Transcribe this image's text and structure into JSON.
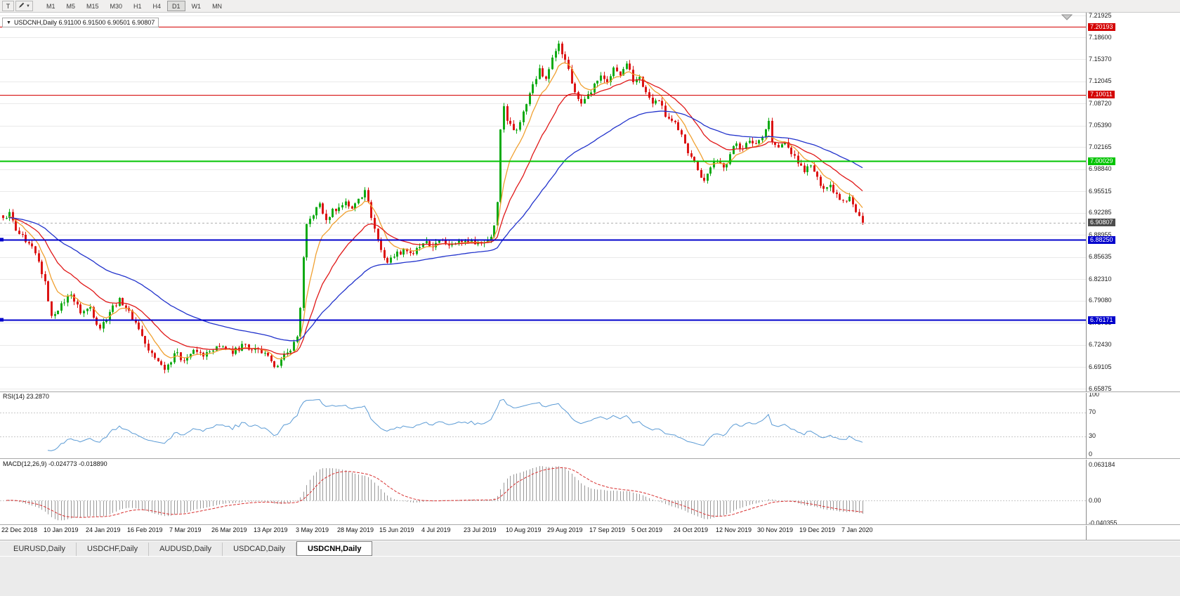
{
  "toolbar": {
    "text_tool": "T",
    "draw_tool_icon": "pencil-icon",
    "timeframes": [
      "M1",
      "M5",
      "M15",
      "M30",
      "H1",
      "H4",
      "D1",
      "W1",
      "MN"
    ],
    "active_timeframe": "D1"
  },
  "chart_header": {
    "collapse_icon": "▼",
    "text": "USDCNH,Daily 6.91100 6.91500 6.90501 6.90807"
  },
  "panels": {
    "rsi_label": "RSI(14) 23.2870",
    "macd_label": "MACD(12,26,9) -0.024773 -0.018890"
  },
  "tabs": {
    "items": [
      "EURUSD,Daily",
      "USDCHF,Daily",
      "AUDUSD,Daily",
      "USDCAD,Daily",
      "USDCNH,Daily"
    ],
    "active": "USDCNH,Daily"
  },
  "chart_data": {
    "type": "candlestick",
    "symbol": "USDCNH",
    "timeframe": "Daily",
    "ohlc_current": {
      "open": "6.91100",
      "high": "6.91500",
      "low": "6.90501",
      "close": "6.90807"
    },
    "bars": 267,
    "price_min": 6.65875,
    "price_max": 7.21925,
    "candle_up": "#0faa14",
    "candle_down": "#dc1414",
    "grid_color": "#e9e9e9",
    "price_axis": {
      "ticks": [
        "7.21925",
        "7.18600",
        "7.15370",
        "7.12045",
        "7.08720",
        "7.05390",
        "7.02165",
        "6.98840",
        "6.95515",
        "6.92285",
        "6.88955",
        "6.85635",
        "6.82310",
        "6.79080",
        "6.75755",
        "6.72430",
        "6.69105",
        "6.65875"
      ]
    },
    "hlines": [
      {
        "price": 7.20193,
        "label": "7.20193",
        "color": "#d40000",
        "width": 1,
        "handle": false
      },
      {
        "price": 7.10011,
        "label": "7.10011",
        "color": "#d40000",
        "width": 1,
        "handle": false
      },
      {
        "price": 7.00029,
        "label": "7.00029",
        "color": "#00c400",
        "width": 2,
        "handle": false
      },
      {
        "price": 6.8825,
        "label": "6.88250",
        "color": "#0000cc",
        "width": 2,
        "handle": true
      },
      {
        "price": 6.76171,
        "label": "6.76171",
        "color": "#0000cc",
        "width": 2,
        "handle": true
      }
    ],
    "current_price": {
      "price": 6.90807,
      "label": "6.90807",
      "line_color": "#b0b0b0",
      "box_color": "#4d4d4d"
    },
    "ma": [
      {
        "period": 8,
        "color": "#f0a030"
      },
      {
        "period": 21,
        "color": "#e01818"
      },
      {
        "period": 55,
        "color": "#2233cc"
      }
    ],
    "rsi": {
      "period": 14,
      "value": 23.287,
      "color": "#5b9bd5",
      "levels": [
        70,
        30
      ],
      "scale": [
        "100",
        "70",
        "30",
        "0"
      ]
    },
    "macd": {
      "fast": 12,
      "slow": 26,
      "signal": 9,
      "main_value": -0.024773,
      "signal_value": -0.01889,
      "hist_color": "#999999",
      "signal_color": "#d83030",
      "scale": [
        "0.063184",
        "0.00",
        "-0.040355"
      ]
    },
    "date_axis": {
      "labels": [
        "22 Dec 2018",
        "10 Jan 2019",
        "24 Jan 2019",
        "16 Feb 2019",
        "7 Mar 2019",
        "26 Mar 2019",
        "13 Apr 2019",
        "3 May 2019",
        "28 May 2019",
        "15 Jun 2019",
        "4 Jul 2019",
        "23 Jul 2019",
        "10 Aug 2019",
        "29 Aug 2019",
        "17 Sep 2019",
        "5 Oct 2019",
        "24 Oct 2019",
        "12 Nov 2019",
        "30 Nov 2019",
        "19 Dec 2019",
        "7 Jan 2020"
      ],
      "bars_per_label": 13
    },
    "anchors": [
      [
        0,
        6.915
      ],
      [
        2,
        6.924
      ],
      [
        4,
        6.896
      ],
      [
        7,
        6.879
      ],
      [
        10,
        6.862
      ],
      [
        13,
        6.82
      ],
      [
        15,
        6.768
      ],
      [
        18,
        6.787
      ],
      [
        21,
        6.8
      ],
      [
        24,
        6.772
      ],
      [
        27,
        6.781
      ],
      [
        30,
        6.749
      ],
      [
        33,
        6.774
      ],
      [
        36,
        6.795
      ],
      [
        39,
        6.776
      ],
      [
        42,
        6.748
      ],
      [
        45,
        6.716
      ],
      [
        48,
        6.7
      ],
      [
        50,
        6.687
      ],
      [
        53,
        6.712
      ],
      [
        56,
        6.701
      ],
      [
        59,
        6.717
      ],
      [
        62,
        6.707
      ],
      [
        65,
        6.716
      ],
      [
        68,
        6.722
      ],
      [
        71,
        6.711
      ],
      [
        74,
        6.726
      ],
      [
        77,
        6.717
      ],
      [
        80,
        6.712
      ],
      [
        83,
        6.7
      ],
      [
        85,
        6.693
      ],
      [
        88,
        6.713
      ],
      [
        90,
        6.729
      ],
      [
        91,
        6.737
      ],
      [
        92,
        6.78
      ],
      [
        93,
        6.856
      ],
      [
        94,
        6.906
      ],
      [
        96,
        6.919
      ],
      [
        98,
        6.937
      ],
      [
        100,
        6.912
      ],
      [
        102,
        6.929
      ],
      [
        104,
        6.931
      ],
      [
        106,
        6.94
      ],
      [
        108,
        6.929
      ],
      [
        110,
        6.944
      ],
      [
        112,
        6.957
      ],
      [
        113,
        6.939
      ],
      [
        115,
        6.899
      ],
      [
        117,
        6.867
      ],
      [
        119,
        6.848
      ],
      [
        121,
        6.857
      ],
      [
        124,
        6.869
      ],
      [
        127,
        6.861
      ],
      [
        130,
        6.877
      ],
      [
        133,
        6.871
      ],
      [
        136,
        6.881
      ],
      [
        139,
        6.875
      ],
      [
        142,
        6.879
      ],
      [
        145,
        6.883
      ],
      [
        148,
        6.877
      ],
      [
        151,
        6.887
      ],
      [
        152,
        6.904
      ],
      [
        153,
        6.939
      ],
      [
        154,
        7.048
      ],
      [
        155,
        7.083
      ],
      [
        156,
        7.061
      ],
      [
        158,
        7.047
      ],
      [
        160,
        7.059
      ],
      [
        162,
        7.086
      ],
      [
        164,
        7.116
      ],
      [
        166,
        7.14
      ],
      [
        168,
        7.124
      ],
      [
        170,
        7.156
      ],
      [
        172,
        7.177
      ],
      [
        173,
        7.161
      ],
      [
        175,
        7.139
      ],
      [
        177,
        7.104
      ],
      [
        179,
        7.087
      ],
      [
        181,
        7.101
      ],
      [
        183,
        7.117
      ],
      [
        185,
        7.129
      ],
      [
        187,
        7.119
      ],
      [
        189,
        7.141
      ],
      [
        191,
        7.129
      ],
      [
        193,
        7.147
      ],
      [
        195,
        7.119
      ],
      [
        197,
        7.127
      ],
      [
        199,
        7.104
      ],
      [
        201,
        7.087
      ],
      [
        203,
        7.091
      ],
      [
        205,
        7.067
      ],
      [
        207,
        7.061
      ],
      [
        209,
        7.047
      ],
      [
        211,
        7.027
      ],
      [
        213,
        7.007
      ],
      [
        215,
        6.987
      ],
      [
        217,
        6.971
      ],
      [
        219,
        6.991
      ],
      [
        221,
        7.001
      ],
      [
        223,
        6.991
      ],
      [
        225,
        7.011
      ],
      [
        227,
        7.027
      ],
      [
        229,
        7.019
      ],
      [
        231,
        7.031
      ],
      [
        233,
        7.027
      ],
      [
        235,
        7.037
      ],
      [
        237,
        7.061
      ],
      [
        238,
        7.029
      ],
      [
        240,
        7.021
      ],
      [
        242,
        7.029
      ],
      [
        244,
        7.011
      ],
      [
        246,
        6.997
      ],
      [
        248,
        6.984
      ],
      [
        250,
        6.994
      ],
      [
        252,
        6.977
      ],
      [
        254,
        6.959
      ],
      [
        256,
        6.965
      ],
      [
        258,
        6.951
      ],
      [
        260,
        6.941
      ],
      [
        262,
        6.947
      ],
      [
        264,
        6.924
      ],
      [
        266,
        6.90807
      ]
    ]
  }
}
